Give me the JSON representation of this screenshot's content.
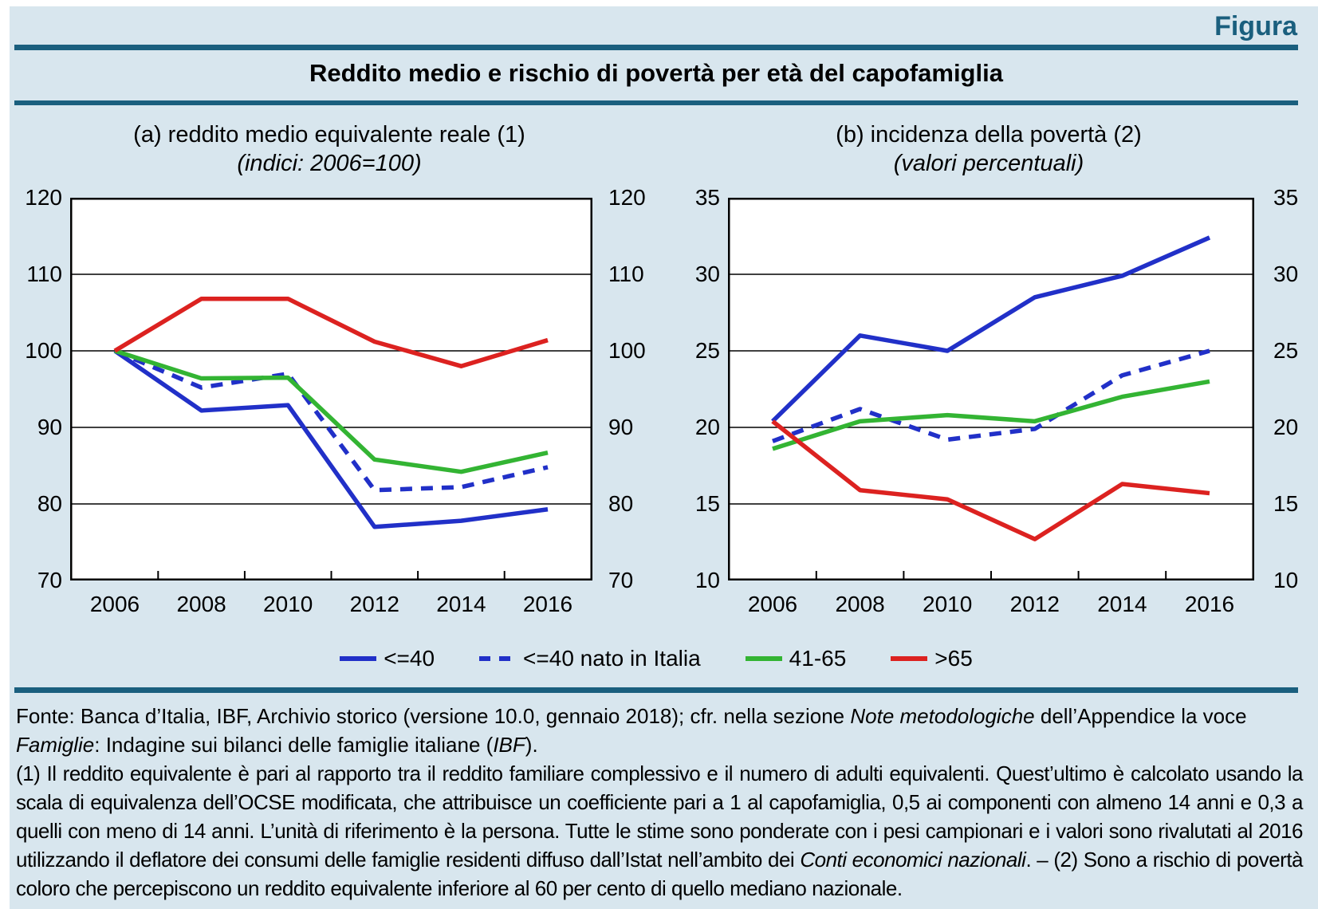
{
  "figure_label": "Figura",
  "title": "Reddito medio e rischio di povertà per età del capofamiglia",
  "colors": {
    "accent_teal": "#1a5f7e",
    "page_background": "#d8e6ee",
    "plot_background": "#ffffff",
    "blue": "#2130c8",
    "green": "#33b433",
    "red": "#dc2220",
    "axis_black": "#000000"
  },
  "legend": [
    {
      "label": "<=40",
      "color": "blue",
      "dash": false
    },
    {
      "label": "<=40 nato in Italia",
      "color": "blue",
      "dash": true
    },
    {
      "label": "41-65",
      "color": "green",
      "dash": false
    },
    {
      "label": ">65",
      "color": "red",
      "dash": false
    }
  ],
  "chart_data": [
    {
      "type": "line",
      "panel": "a",
      "title": "(a) reddito medio equivalente reale (1)",
      "subtitle": "(indici: 2006=100)",
      "x": [
        2006,
        2008,
        2010,
        2012,
        2014,
        2016
      ],
      "x_tick_labels": [
        "2006",
        "2008",
        "2010",
        "2012",
        "2014",
        "2016"
      ],
      "ylim": [
        70,
        120
      ],
      "yticks": [
        70,
        80,
        90,
        100,
        110,
        120
      ],
      "grid": true,
      "legend_position": "bottom-shared",
      "series": [
        {
          "name": "<=40",
          "color": "blue",
          "dash": false,
          "values": [
            100,
            92.2,
            92.9,
            77,
            77.8,
            79.3
          ]
        },
        {
          "name": "<=40 nato in Italia",
          "color": "blue",
          "dash": true,
          "values": [
            100,
            95.2,
            97,
            81.8,
            82.2,
            84.8
          ]
        },
        {
          "name": "41-65",
          "color": "green",
          "dash": false,
          "values": [
            100,
            96.4,
            96.5,
            85.8,
            84.2,
            86.7
          ]
        },
        {
          "name": ">65",
          "color": "red",
          "dash": false,
          "values": [
            100,
            106.8,
            106.8,
            101.2,
            98,
            101.4
          ]
        }
      ]
    },
    {
      "type": "line",
      "panel": "b",
      "title": "(b) incidenza della povertà (2)",
      "subtitle": "(valori percentuali)",
      "x": [
        2006,
        2008,
        2010,
        2012,
        2014,
        2016
      ],
      "x_tick_labels": [
        "2006",
        "2008",
        "2010",
        "2012",
        "2014",
        "2016"
      ],
      "ylim": [
        10,
        35
      ],
      "yticks": [
        10,
        15,
        20,
        25,
        30,
        35
      ],
      "grid": true,
      "legend_position": "bottom-shared",
      "series": [
        {
          "name": "<=40",
          "color": "blue",
          "dash": false,
          "values": [
            20.4,
            26,
            25,
            28.5,
            29.9,
            32.4
          ]
        },
        {
          "name": "<=40 nato in Italia",
          "color": "blue",
          "dash": true,
          "values": [
            19.1,
            21.2,
            19.2,
            19.9,
            23.4,
            25
          ]
        },
        {
          "name": "41-65",
          "color": "green",
          "dash": false,
          "values": [
            18.6,
            20.4,
            20.8,
            20.4,
            22,
            23
          ]
        },
        {
          "name": ">65",
          "color": "red",
          "dash": false,
          "values": [
            20.4,
            15.9,
            15.3,
            12.7,
            16.3,
            15.7
          ]
        }
      ]
    }
  ],
  "footnotes": {
    "paragraphs": [
      {
        "justified": false,
        "segments": [
          {
            "text": "Fonte: Banca d’Italia, IBF, Archivio storico (versione 10.0, gennaio 2018); cfr. nella sezione ",
            "italic": false
          },
          {
            "text": "Note metodologiche",
            "italic": true
          },
          {
            "text": " dell’Appendice la voce ",
            "italic": false
          },
          {
            "text": "Famiglie",
            "italic": true
          },
          {
            "text": ": Indagine sui bilanci delle famiglie italiane (",
            "italic": false
          },
          {
            "text": "IBF",
            "italic": true
          },
          {
            "text": ").",
            "italic": false
          }
        ]
      },
      {
        "justified": true,
        "segments": [
          {
            "text": "(1) Il reddito equivalente è pari al rapporto tra il reddito familiare complessivo e il numero di adulti equivalenti. Quest’ultimo è calcolato usando la scala di equivalenza dell’OCSE modificata, che attribuisce un coefficiente pari a 1 al capofamiglia, 0,5 ai componenti con almeno 14 anni e 0,3 a quelli con meno di 14 anni. L’unità di riferimento è la persona. Tutte le stime sono ponderate con i pesi campionari e i valori sono rivalutati al 2016 utilizzando il deflatore dei consumi delle famiglie residenti diffuso dall’Istat nell’ambito dei ",
            "italic": false
          },
          {
            "text": "Conti economici nazionali",
            "italic": true
          },
          {
            "text": ". – (2) Sono a rischio di povertà coloro che percepiscono un reddito equivalente inferiore al 60 per cento di quello mediano nazionale.",
            "italic": false
          }
        ]
      }
    ]
  }
}
